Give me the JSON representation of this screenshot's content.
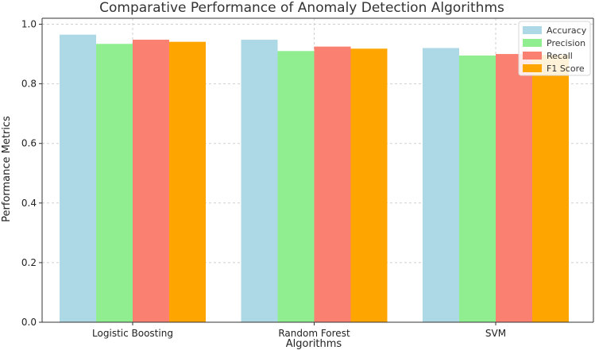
{
  "chart_data": {
    "type": "bar",
    "title": "Comparative Performance of Anomaly Detection Algorithms",
    "xlabel": "Algorithms",
    "ylabel": "Performance Metrics",
    "categories": [
      "Logistic Boosting",
      "Random Forest",
      "SVM"
    ],
    "series": [
      {
        "name": "Accuracy",
        "color": "#add8e6",
        "values": [
          0.965,
          0.948,
          0.92
        ]
      },
      {
        "name": "Precision",
        "color": "#90ee90",
        "values": [
          0.934,
          0.91,
          0.895
        ]
      },
      {
        "name": "Recall",
        "color": "#fa8072",
        "values": [
          0.948,
          0.925,
          0.9
        ]
      },
      {
        "name": "F1 Score",
        "color": "#ffa500",
        "values": [
          0.941,
          0.918,
          0.897
        ]
      }
    ],
    "ylim": [
      0,
      1.02
    ],
    "yticks": [
      "0.0",
      "0.2",
      "0.4",
      "0.6",
      "0.8",
      "1.0"
    ],
    "grid": true,
    "legend_position": "top-right"
  }
}
